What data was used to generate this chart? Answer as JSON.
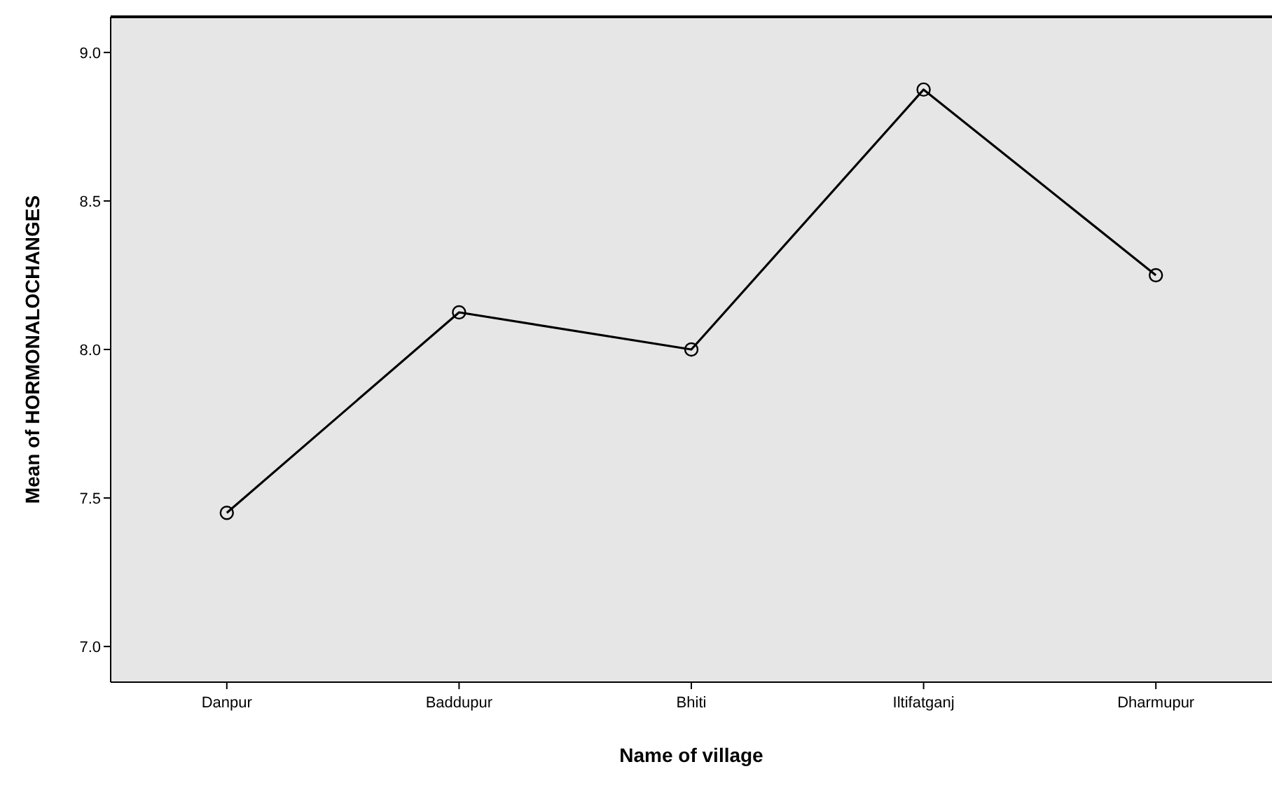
{
  "chart_data": {
    "type": "line",
    "xlabel": "Name of  village",
    "ylabel": "Mean of HORMONALOCHANGES",
    "categories": [
      "Danpur",
      "Baddupur",
      "Bhiti",
      "Iltifatganj",
      "Dharmupur"
    ],
    "series": [
      {
        "color": "#000000",
        "values": [
          7.45,
          8.125,
          8.0,
          8.875,
          8.25
        ]
      }
    ],
    "ylim": [
      6.88,
      9.12
    ],
    "yticks": [
      {
        "value": 7,
        "label": "7.0"
      },
      {
        "value": 7.5,
        "label": "7.5"
      },
      {
        "value": 8,
        "label": "8.0"
      },
      {
        "value": 8.5,
        "label": "8.5"
      },
      {
        "value": 9,
        "label": "9.0"
      }
    ],
    "grid": false,
    "marker": "circle",
    "line_style": "solid"
  }
}
